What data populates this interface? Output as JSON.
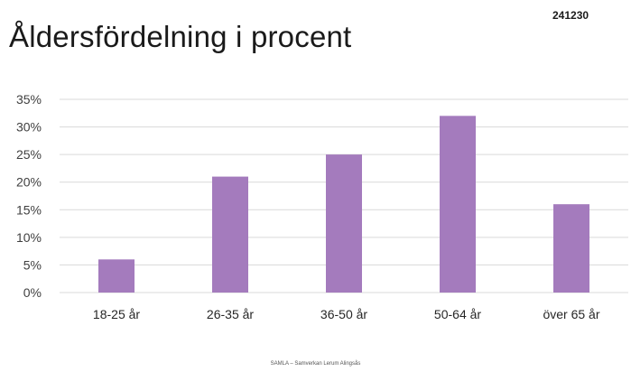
{
  "slide": {
    "title": "Åldersfördelning i procent",
    "date": "241230",
    "footer": "SAMLA – Samverkan Lerum Alingsås"
  },
  "chart_data": {
    "type": "bar",
    "title": "",
    "xlabel": "",
    "ylabel": "",
    "categories": [
      "18-25 år",
      "26-35 år",
      "36-50 år",
      "50-64 år",
      "över 65 år"
    ],
    "values": [
      6,
      21,
      25,
      32,
      16
    ],
    "unit": "%",
    "ylim": [
      0,
      35
    ],
    "yticks": [
      "0%",
      "5%",
      "10%",
      "15%",
      "20%",
      "25%",
      "30%",
      "35%"
    ],
    "grid": true,
    "legend": "none",
    "bar_color": "#a47bbd",
    "grid_color": "#d9d9d9"
  }
}
